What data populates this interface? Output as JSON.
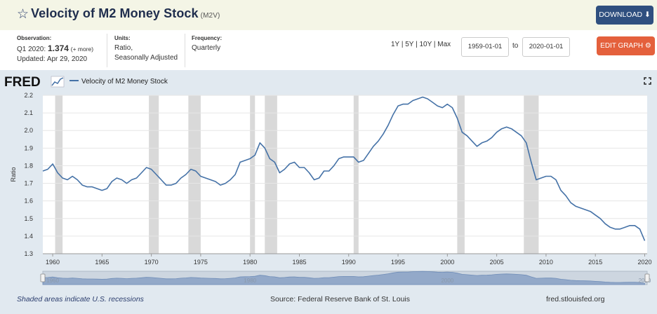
{
  "header": {
    "star_icon": "star-outline-icon",
    "title": "Velocity of M2 Money Stock",
    "code": "(M2V)",
    "download_label": "DOWNLOAD",
    "download_icon": "download-icon"
  },
  "meta": {
    "observation_label": "Observation:",
    "observation_period": "Q1 2020:",
    "observation_value": "1.374",
    "observation_more": "(+ more)",
    "updated": "Updated: Apr 29, 2020",
    "units_label": "Units:",
    "units_line1": "Ratio,",
    "units_line2": "Seasonally Adjusted",
    "frequency_label": "Frequency:",
    "frequency_value": "Quarterly"
  },
  "controls": {
    "range_1y": "1Y",
    "range_5y": "5Y",
    "range_10y": "10Y",
    "range_max": "Max",
    "sep": "|",
    "start_date": "1959-01-01",
    "to_label": "to",
    "end_date": "2020-01-01",
    "edit_label": "EDIT GRAPH",
    "edit_icon": "gear-icon"
  },
  "graph": {
    "logo": "FRED",
    "legend_label": "Velocity of M2 Money Stock",
    "expand_icon": "expand-icon"
  },
  "footer": {
    "recession_note": "Shaded areas indicate U.S. recessions",
    "source": "Source: Federal Reserve Bank of St. Louis",
    "site": "fred.stlouisfed.org"
  },
  "colors": {
    "line": "#4572a7",
    "recession": "#d9d9d9",
    "download_button": "#2f4f7f",
    "edit_button": "#e4603c"
  },
  "chart_data": {
    "type": "line",
    "title": "",
    "ylabel": "Ratio",
    "xlabel": "",
    "ylim": [
      1.3,
      2.2
    ],
    "xlim": [
      1959.0,
      2020.25
    ],
    "yticks": [
      1.3,
      1.4,
      1.5,
      1.6,
      1.7,
      1.8,
      1.9,
      2.0,
      2.1,
      2.2
    ],
    "xticks": [
      1960,
      1965,
      1970,
      1975,
      1980,
      1985,
      1990,
      1995,
      2000,
      2005,
      2010,
      2015,
      2020
    ],
    "grid": true,
    "legend_position": "top-left",
    "recessions": [
      [
        1960.25,
        1961.0
      ],
      [
        1969.75,
        1970.75
      ],
      [
        1973.75,
        1975.0
      ],
      [
        1980.0,
        1980.5
      ],
      [
        1981.5,
        1982.75
      ],
      [
        1990.5,
        1991.0
      ],
      [
        2001.0,
        2001.75
      ],
      [
        2007.75,
        2009.25
      ]
    ],
    "series": [
      {
        "name": "Velocity of M2 Money Stock",
        "x": [
          1959.0,
          1959.5,
          1960.0,
          1960.5,
          1961.0,
          1961.5,
          1962.0,
          1962.5,
          1963.0,
          1963.5,
          1964.0,
          1964.5,
          1965.0,
          1965.5,
          1966.0,
          1966.5,
          1967.0,
          1967.5,
          1968.0,
          1968.5,
          1969.0,
          1969.5,
          1970.0,
          1970.5,
          1971.0,
          1971.5,
          1972.0,
          1972.5,
          1973.0,
          1973.5,
          1974.0,
          1974.5,
          1975.0,
          1975.5,
          1976.0,
          1976.5,
          1977.0,
          1977.5,
          1978.0,
          1978.5,
          1979.0,
          1979.5,
          1980.0,
          1980.5,
          1981.0,
          1981.5,
          1982.0,
          1982.5,
          1983.0,
          1983.5,
          1984.0,
          1984.5,
          1985.0,
          1985.5,
          1986.0,
          1986.5,
          1987.0,
          1987.5,
          1988.0,
          1988.5,
          1989.0,
          1989.5,
          1990.0,
          1990.5,
          1991.0,
          1991.5,
          1992.0,
          1992.5,
          1993.0,
          1993.5,
          1994.0,
          1994.5,
          1995.0,
          1995.5,
          1996.0,
          1996.5,
          1997.0,
          1997.5,
          1998.0,
          1998.5,
          1999.0,
          1999.5,
          2000.0,
          2000.5,
          2001.0,
          2001.5,
          2002.0,
          2002.5,
          2003.0,
          2003.5,
          2004.0,
          2004.5,
          2005.0,
          2005.5,
          2006.0,
          2006.5,
          2007.0,
          2007.5,
          2008.0,
          2008.5,
          2009.0,
          2009.5,
          2010.0,
          2010.5,
          2011.0,
          2011.5,
          2012.0,
          2012.5,
          2013.0,
          2013.5,
          2014.0,
          2014.5,
          2015.0,
          2015.5,
          2016.0,
          2016.5,
          2017.0,
          2017.5,
          2018.0,
          2018.5,
          2019.0,
          2019.5,
          2020.0
        ],
        "values": [
          1.77,
          1.78,
          1.81,
          1.76,
          1.73,
          1.72,
          1.74,
          1.72,
          1.69,
          1.68,
          1.68,
          1.67,
          1.66,
          1.67,
          1.71,
          1.73,
          1.72,
          1.7,
          1.72,
          1.73,
          1.76,
          1.79,
          1.78,
          1.75,
          1.72,
          1.69,
          1.69,
          1.7,
          1.73,
          1.75,
          1.78,
          1.77,
          1.74,
          1.73,
          1.72,
          1.71,
          1.69,
          1.7,
          1.72,
          1.75,
          1.82,
          1.83,
          1.84,
          1.86,
          1.93,
          1.9,
          1.84,
          1.82,
          1.76,
          1.78,
          1.81,
          1.82,
          1.79,
          1.79,
          1.76,
          1.72,
          1.73,
          1.77,
          1.77,
          1.8,
          1.84,
          1.85,
          1.85,
          1.85,
          1.82,
          1.83,
          1.87,
          1.91,
          1.94,
          1.98,
          2.03,
          2.09,
          2.14,
          2.15,
          2.15,
          2.17,
          2.18,
          2.19,
          2.18,
          2.16,
          2.14,
          2.13,
          2.15,
          2.13,
          2.07,
          1.99,
          1.97,
          1.94,
          1.91,
          1.93,
          1.94,
          1.96,
          1.99,
          2.01,
          2.02,
          2.01,
          1.99,
          1.97,
          1.93,
          1.82,
          1.72,
          1.73,
          1.74,
          1.74,
          1.72,
          1.66,
          1.63,
          1.59,
          1.57,
          1.56,
          1.55,
          1.54,
          1.52,
          1.5,
          1.47,
          1.45,
          1.44,
          1.44,
          1.45,
          1.46,
          1.46,
          1.44,
          1.374
        ]
      }
    ],
    "navigator_labels": [
      "1960",
      "1980",
      "2000",
      "2020"
    ]
  }
}
